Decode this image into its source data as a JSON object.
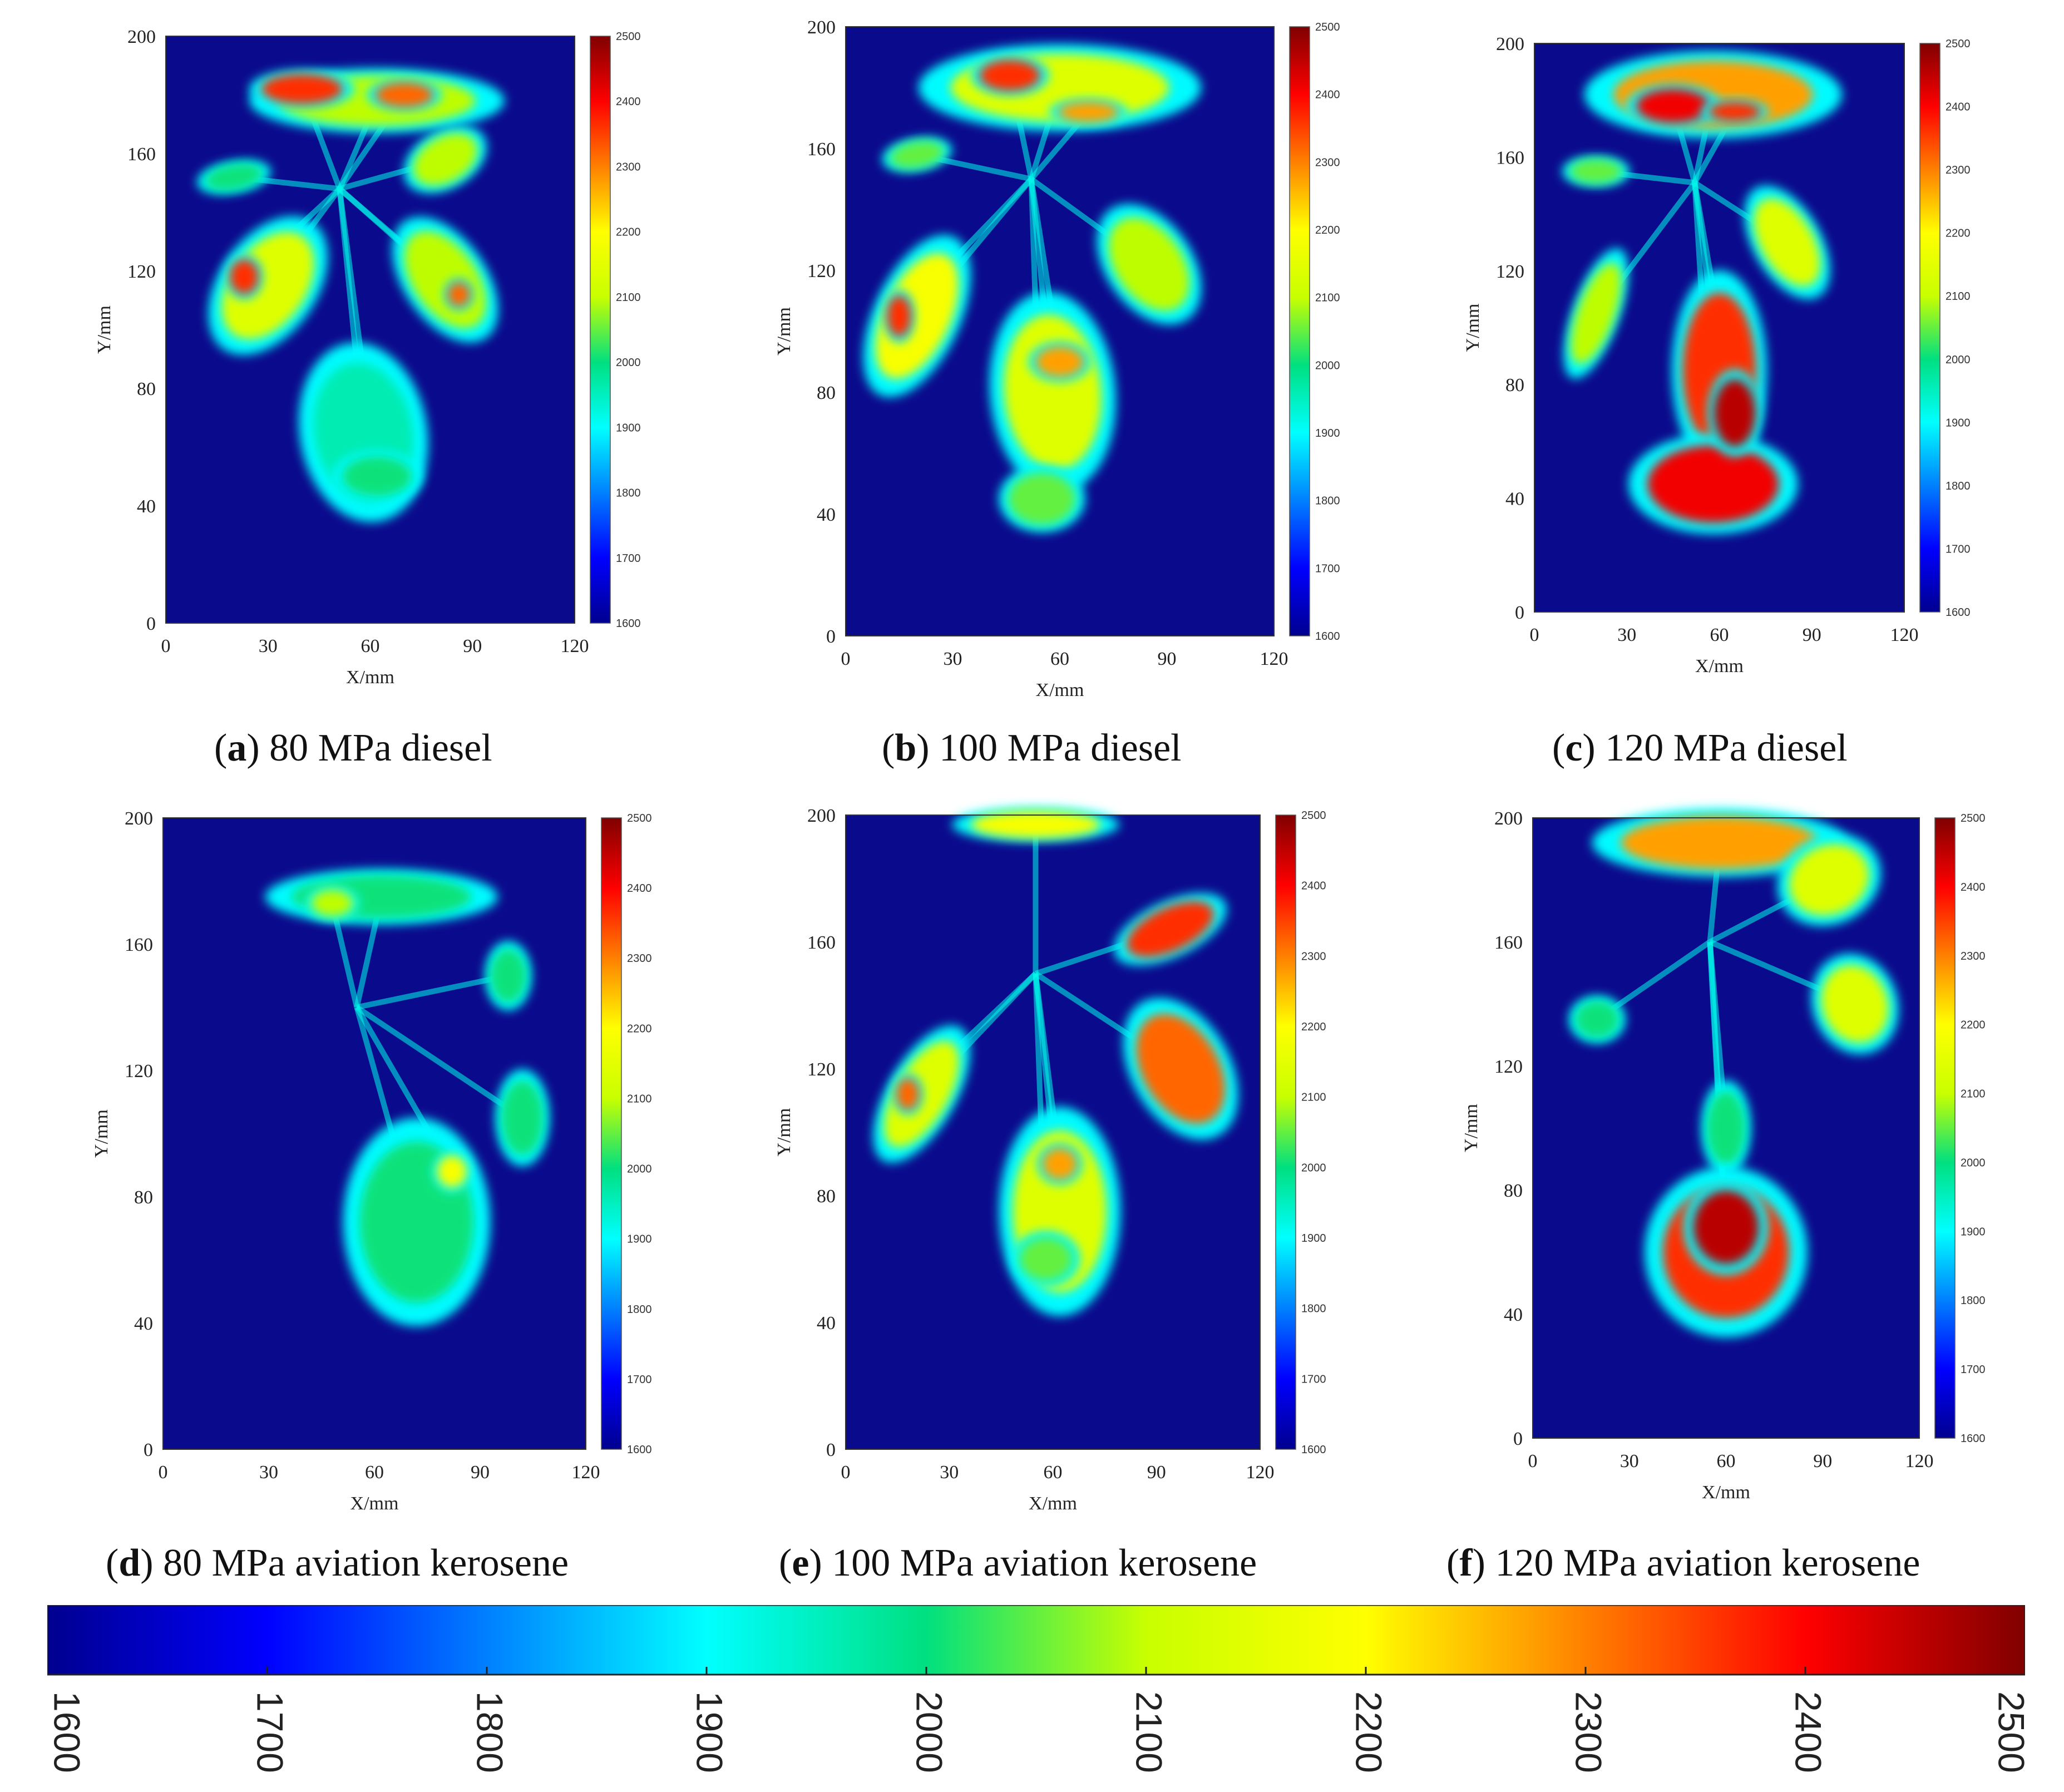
{
  "chart_data": [
    {
      "type": "heatmap",
      "letter": "a",
      "caption": "80 MPa diesel",
      "xlabel": "X/mm",
      "ylabel": "Y/mm",
      "xlim": [
        0,
        120
      ],
      "ylim": [
        0,
        200
      ],
      "xticks": [
        "0",
        "30",
        "60",
        "90",
        "120"
      ],
      "yticks": [
        "0",
        "40",
        "80",
        "120",
        "160",
        "200"
      ],
      "colorbar": {
        "min": 1600,
        "max": 2500,
        "ticks": [
          "1600",
          "1700",
          "1800",
          "1900",
          "2000",
          "2100",
          "2200",
          "2300",
          "2400",
          "2500"
        ]
      },
      "injector_center": [
        51,
        148
      ]
    },
    {
      "type": "heatmap",
      "letter": "b",
      "caption": "100 MPa diesel",
      "xlabel": "X/mm",
      "ylabel": "Y/mm",
      "xlim": [
        0,
        120
      ],
      "ylim": [
        0,
        200
      ],
      "xticks": [
        "0",
        "30",
        "60",
        "90",
        "120"
      ],
      "yticks": [
        "0",
        "40",
        "80",
        "120",
        "160",
        "200"
      ],
      "colorbar": {
        "min": 1600,
        "max": 2500,
        "ticks": [
          "1600",
          "1700",
          "1800",
          "1900",
          "2000",
          "2100",
          "2200",
          "2300",
          "2400",
          "2500"
        ]
      },
      "injector_center": [
        52,
        150
      ]
    },
    {
      "type": "heatmap",
      "letter": "c",
      "caption": "120 MPa diesel",
      "xlabel": "X/mm",
      "ylabel": "Y/mm",
      "xlim": [
        0,
        120
      ],
      "ylim": [
        0,
        200
      ],
      "xticks": [
        "0",
        "30",
        "60",
        "90",
        "120"
      ],
      "yticks": [
        "0",
        "40",
        "80",
        "120",
        "160",
        "200"
      ],
      "colorbar": {
        "min": 1600,
        "max": 2500,
        "ticks": [
          "1600",
          "1700",
          "1800",
          "1900",
          "2000",
          "2100",
          "2200",
          "2300",
          "2400",
          "2500"
        ]
      },
      "injector_center": [
        52,
        151
      ]
    },
    {
      "type": "heatmap",
      "letter": "d",
      "caption": "80 MPa aviation kerosene",
      "xlabel": "X/mm",
      "ylabel": "Y/mm",
      "xlim": [
        0,
        120
      ],
      "ylim": [
        0,
        200
      ],
      "xticks": [
        "0",
        "30",
        "60",
        "90",
        "120"
      ],
      "yticks": [
        "0",
        "40",
        "80",
        "120",
        "160",
        "200"
      ],
      "colorbar": {
        "min": 1600,
        "max": 2500,
        "ticks": [
          "1600",
          "1700",
          "1800",
          "1900",
          "2000",
          "2100",
          "2200",
          "2300",
          "2400",
          "2500"
        ]
      },
      "injector_center": [
        55,
        140
      ]
    },
    {
      "type": "heatmap",
      "letter": "e",
      "caption": "100 MPa aviation kerosene",
      "xlabel": "X/mm",
      "ylabel": "Y/mm",
      "xlim": [
        0,
        120
      ],
      "ylim": [
        0,
        200
      ],
      "xticks": [
        "0",
        "30",
        "60",
        "90",
        "120"
      ],
      "yticks": [
        "0",
        "40",
        "80",
        "120",
        "160",
        "200"
      ],
      "colorbar": {
        "min": 1600,
        "max": 2500,
        "ticks": [
          "1600",
          "1700",
          "1800",
          "1900",
          "2000",
          "2100",
          "2200",
          "2300",
          "2400",
          "2500"
        ]
      },
      "injector_center": [
        55,
        150
      ]
    },
    {
      "type": "heatmap",
      "letter": "f",
      "caption": "120 MPa aviation kerosene",
      "xlabel": "X/mm",
      "ylabel": "Y/mm",
      "xlim": [
        0,
        120
      ],
      "ylim": [
        0,
        200
      ],
      "xticks": [
        "0",
        "30",
        "60",
        "90",
        "120"
      ],
      "yticks": [
        "0",
        "40",
        "80",
        "120",
        "160",
        "200"
      ],
      "colorbar": {
        "min": 1600,
        "max": 2500,
        "ticks": [
          "1600",
          "1700",
          "1800",
          "1900",
          "2000",
          "2100",
          "2200",
          "2300",
          "2400",
          "2500"
        ]
      },
      "injector_center": [
        55,
        160
      ]
    }
  ],
  "shared_colorbar": {
    "min": 1600,
    "max": 2500,
    "ticks": [
      "1600",
      "1700",
      "1800",
      "1900",
      "2000",
      "2100",
      "2200",
      "2300",
      "2400",
      "2500"
    ]
  },
  "colors": {
    "background": "#0a0a8c",
    "colormap": [
      "#00008f",
      "#0000ff",
      "#0080ff",
      "#00ffff",
      "#00e080",
      "#c8ff00",
      "#ffff00",
      "#ff8000",
      "#ff0000",
      "#800000"
    ]
  }
}
